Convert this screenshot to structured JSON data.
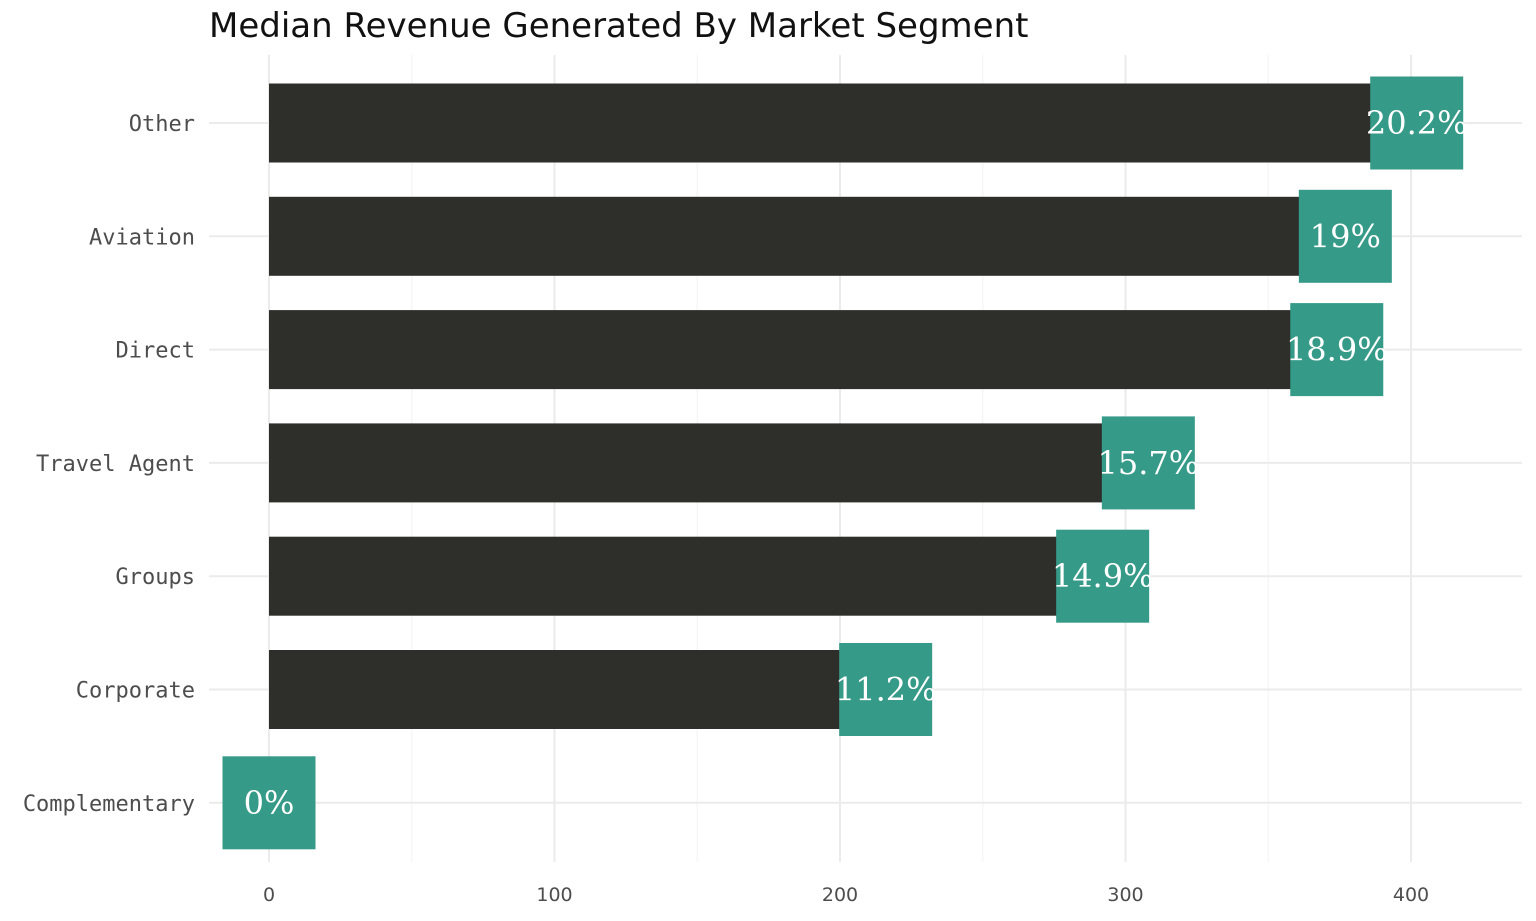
{
  "chart_data": {
    "type": "bar",
    "orientation": "horizontal",
    "title": "Median Revenue Generated By Market Segment",
    "xlabel": "",
    "ylabel": "",
    "categories": [
      "Other",
      "Aviation",
      "Direct",
      "Travel Agent",
      "Groups",
      "Corporate",
      "Complementary"
    ],
    "values": [
      402,
      377,
      374,
      308,
      292,
      216,
      0
    ],
    "labels": [
      "20.2%",
      "19%",
      "18.9%",
      "15.7%",
      "14.9%",
      "11.2%",
      "0%"
    ],
    "xlim": [
      -16,
      442
    ],
    "xticks": [
      0,
      100,
      200,
      300,
      400
    ],
    "grid": true,
    "legend": "none"
  },
  "colors": {
    "bar": "#2e2e2a",
    "label_box": "#359a88",
    "grid_major": "#ebebeb",
    "grid_minor": "#f4f4f4"
  }
}
